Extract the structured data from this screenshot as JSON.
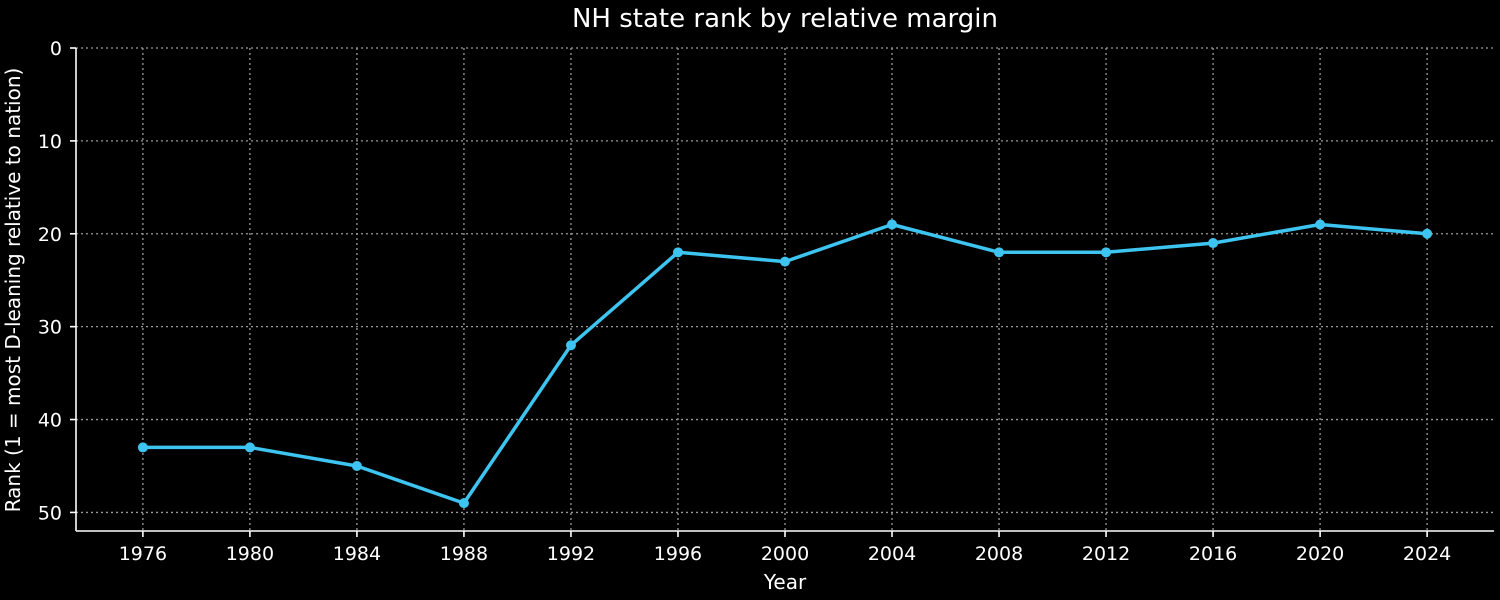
{
  "chart_data": {
    "type": "line",
    "title": "NH state rank by relative margin",
    "xlabel": "Year",
    "ylabel": "Rank (1 = most D-leaning relative to nation)",
    "x": [
      1976,
      1980,
      1984,
      1988,
      1992,
      1996,
      2000,
      2004,
      2008,
      2012,
      2016,
      2020,
      2024
    ],
    "series": [
      {
        "values": [
          43,
          43,
          45,
          49,
          32,
          22,
          23,
          19,
          22,
          22,
          21,
          19,
          20
        ],
        "color": "#3ec4f0"
      }
    ],
    "xticks": [
      "1976",
      "1980",
      "1984",
      "1988",
      "1992",
      "1996",
      "2000",
      "2004",
      "2008",
      "2012",
      "2016",
      "2020",
      "2024"
    ],
    "yticks": [
      "0",
      "10",
      "20",
      "30",
      "40",
      "50"
    ],
    "xlim": [
      1973.5,
      2026.5
    ],
    "ylim": [
      0,
      52
    ],
    "y_inverted": true,
    "grid": true,
    "legend": "none",
    "background": "#000000",
    "foreground": "#ffffff"
  }
}
